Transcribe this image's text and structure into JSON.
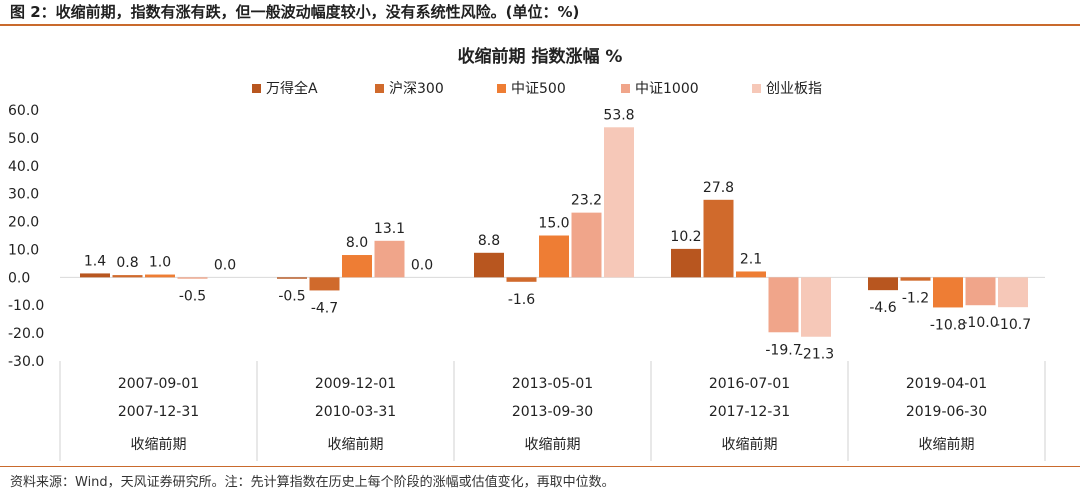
{
  "figure": {
    "title": "图 2：收缩前期，指数有涨有跌，但一般波动幅度较小，没有系统性风险。(单位：%)",
    "source": "资料来源：Wind，天风证券研究所。注：先计算指数在历史上每个阶段的涨幅或估值变化，再取中位数。"
  },
  "chart_data": {
    "type": "bar",
    "title": "收缩前期 指数涨幅 %",
    "xlabel": "",
    "ylabel": "",
    "ylim": [
      -30,
      60
    ],
    "yticks": [
      "60.0",
      "50.0",
      "40.0",
      "30.0",
      "20.0",
      "10.0",
      "0.0",
      "-10.0",
      "-20.0",
      "-30.0"
    ],
    "ytick_values": [
      60,
      50,
      40,
      30,
      20,
      10,
      0,
      -10,
      -20,
      -30
    ],
    "legend_position": "top-center",
    "categories": [
      {
        "start": "2007-09-01",
        "end": "2007-12-31",
        "phase": "收缩前期"
      },
      {
        "start": "2009-12-01",
        "end": "2010-03-31",
        "phase": "收缩前期"
      },
      {
        "start": "2013-05-01",
        "end": "2013-09-30",
        "phase": "收缩前期"
      },
      {
        "start": "2016-07-01",
        "end": "2017-12-31",
        "phase": "收缩前期"
      },
      {
        "start": "2019-04-01",
        "end": "2019-06-30",
        "phase": "收缩前期"
      }
    ],
    "series": [
      {
        "name": "万得全A",
        "color": "#b8561f",
        "values": [
          1.4,
          -0.5,
          8.8,
          10.2,
          -4.6
        ],
        "labels": [
          "1.4",
          "-0.5",
          "8.8",
          "10.2",
          "-4.6"
        ]
      },
      {
        "name": "沪深300",
        "color": "#d06a2c",
        "values": [
          0.8,
          -4.7,
          -1.6,
          27.8,
          -1.2
        ],
        "labels": [
          "0.8",
          "-4.7",
          "-1.6",
          "27.8",
          "-1.2"
        ]
      },
      {
        "name": "中证500",
        "color": "#ee7d34",
        "values": [
          1.0,
          8.0,
          15.0,
          2.1,
          -10.8
        ],
        "labels": [
          "1.0",
          "8.0",
          "15.0",
          "2.1",
          "-10.8"
        ]
      },
      {
        "name": "中证1000",
        "color": "#f0a58a",
        "values": [
          -0.5,
          13.1,
          23.2,
          -19.7,
          -10.0
        ],
        "labels": [
          "-0.5",
          "13.1",
          "23.2",
          "-19.7",
          "-10.0"
        ]
      },
      {
        "name": "创业板指",
        "color": "#f6c8b8",
        "values": [
          0.0,
          0.0,
          53.8,
          -21.3,
          -10.7
        ],
        "labels": [
          "0.0",
          "0.0",
          "53.8",
          "-21.3",
          "-10.7"
        ]
      }
    ]
  }
}
